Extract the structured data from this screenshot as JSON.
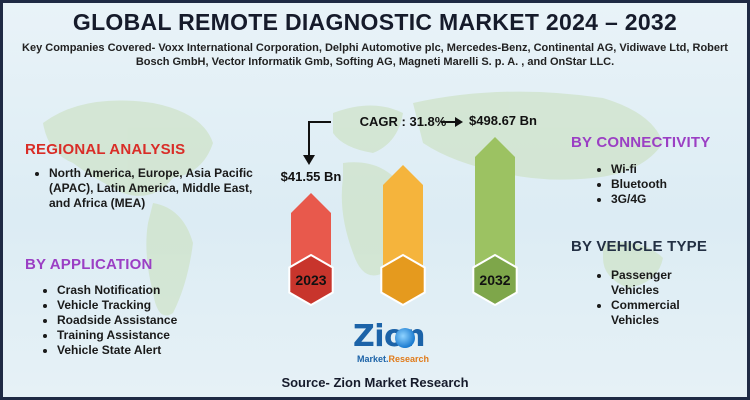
{
  "title": "GLOBAL REMOTE DIAGNOSTIC MARKET 2024 – 2032",
  "subtitle": "Key Companies Covered- Voxx International Corporation, Delphi Automotive plc, Mercedes-Benz, Continental AG, Vidiwave Ltd, Robert Bosch GmbH, Vector Informatik Gmb, Softing AG, Magneti Marelli S. p. A. , and OnStar LLC.",
  "regional": {
    "heading": "REGIONAL ANALYSIS",
    "items": [
      "North America, Europe, Asia Pacific (APAC), Latin America, Middle East, and Africa (MEA)"
    ]
  },
  "application": {
    "heading": "BY APPLICATION",
    "items": [
      "Crash Notification",
      "Vehicle Tracking",
      "Roadside Assistance",
      "Training Assistance",
      "Vehicle State Alert"
    ]
  },
  "connectivity": {
    "heading": "BY CONNECTIVITY",
    "items": [
      "Wi-fi",
      "Bluetooth",
      "3G/4G"
    ]
  },
  "vehicle_type": {
    "heading": "BY VEHICLE TYPE",
    "items": [
      "Passenger Vehicles",
      "Commercial Vehicles"
    ]
  },
  "chart_data": {
    "type": "bar",
    "categories": [
      "2023",
      "",
      "2032"
    ],
    "values": [
      41.55,
      null,
      498.67
    ],
    "value_labels": [
      "$41.55 Bn",
      "",
      "$498.67 Bn"
    ],
    "annotation": "CAGR : 31.8%",
    "colors": [
      "#e8594c",
      "#f5b43c",
      "#9cc262"
    ],
    "grid": false
  },
  "logo": {
    "word": "Zion",
    "sub_left": "Market.",
    "sub_right": "Research"
  },
  "source": "Source- Zion Market Research"
}
